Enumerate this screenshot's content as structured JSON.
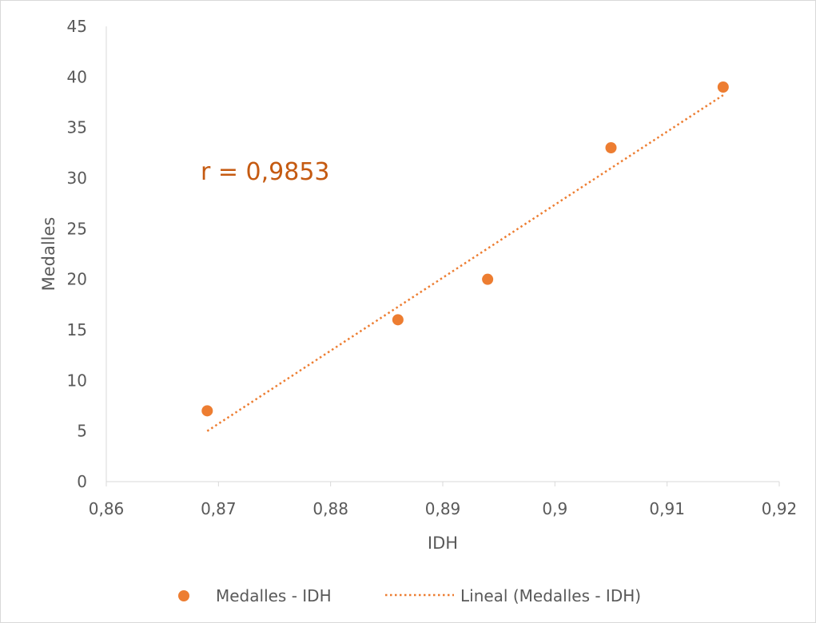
{
  "chart_data": {
    "type": "scatter",
    "title": "",
    "xlabel": "IDH",
    "ylabel": "Medalles",
    "xlim": [
      0.86,
      0.92
    ],
    "ylim": [
      0,
      45
    ],
    "x_ticks": [
      "0,86",
      "0,87",
      "0,88",
      "0,89",
      "0,9",
      "0,91",
      "0,92"
    ],
    "x_tick_values": [
      0.86,
      0.87,
      0.88,
      0.89,
      0.9,
      0.91,
      0.92
    ],
    "y_ticks": [
      "0",
      "5",
      "10",
      "15",
      "20",
      "25",
      "30",
      "35",
      "40",
      "45"
    ],
    "y_tick_values": [
      0,
      5,
      10,
      15,
      20,
      25,
      30,
      35,
      40,
      45
    ],
    "grid": false,
    "legend_position": "bottom",
    "series": [
      {
        "name": "Medalles - IDH",
        "kind": "points",
        "color": "#ED7D31",
        "x": [
          0.869,
          0.886,
          0.894,
          0.905,
          0.915
        ],
        "y": [
          7,
          16,
          20,
          33,
          39
        ]
      },
      {
        "name": "Lineal (Medalles - IDH)",
        "kind": "trendline-linear",
        "color": "#ED7D31",
        "x": [
          0.869,
          0.915
        ],
        "y": [
          5.0,
          38.2
        ]
      }
    ],
    "annotation": {
      "text": "r = 0,9853",
      "color": "#C55A11"
    }
  }
}
